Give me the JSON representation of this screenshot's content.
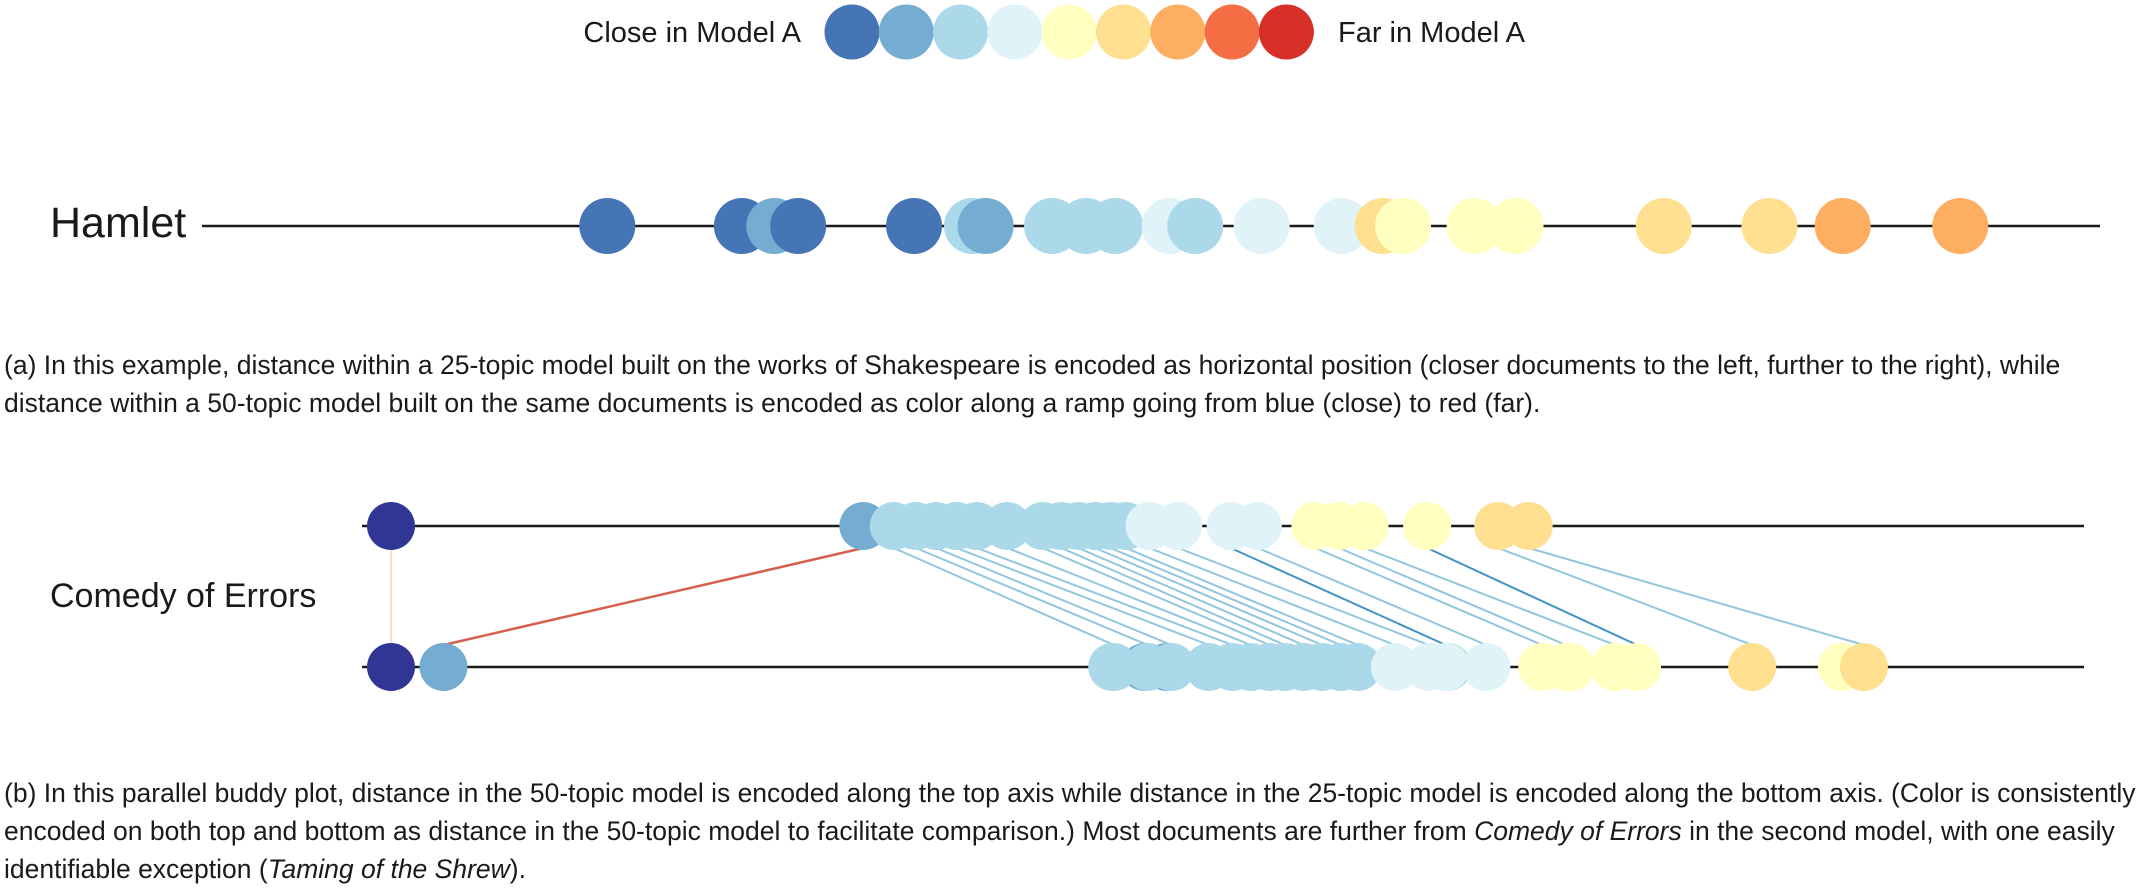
{
  "legend": {
    "left_label": "Close in Model A",
    "right_label": "Far in Model A",
    "swatches": [
      "#4575b4",
      "#74add1",
      "#abd9e9",
      "#e0f3f8",
      "#ffffbf",
      "#fee090",
      "#fdae61",
      "#f46d43",
      "#d73027"
    ]
  },
  "colors": {
    "line": "#1a1a1a",
    "dark_blue": "#313695",
    "connector_light": "#92c5de",
    "connector_dark": "#4393c3",
    "connector_red": "#d6604d",
    "connector_pink": "#fddbc7"
  },
  "panel_a": {
    "label": "Hamlet",
    "caption": "(a) In this example, distance within a 25-topic model built on the works of Shakespeare is encoded as horizontal position (closer documents to the left, further to the right), while distance within a 50-topic model built on the same documents is encoded as color along a ramp going from blue (close) to red (far).",
    "documents": [
      {
        "pos": 0.124,
        "c": 0
      },
      {
        "pos": 0.203,
        "c": 0
      },
      {
        "pos": 0.222,
        "c": 1
      },
      {
        "pos": 0.236,
        "c": 0
      },
      {
        "pos": 0.304,
        "c": 0
      },
      {
        "pos": 0.338,
        "c": 2
      },
      {
        "pos": 0.346,
        "c": 1
      },
      {
        "pos": 0.385,
        "c": 2
      },
      {
        "pos": 0.405,
        "c": 2
      },
      {
        "pos": 0.422,
        "c": 2
      },
      {
        "pos": 0.454,
        "c": 3
      },
      {
        "pos": 0.469,
        "c": 2
      },
      {
        "pos": 0.508,
        "c": 3
      },
      {
        "pos": 0.555,
        "c": 3
      },
      {
        "pos": 0.579,
        "c": 5
      },
      {
        "pos": 0.591,
        "c": 4
      },
      {
        "pos": 0.633,
        "c": 4
      },
      {
        "pos": 0.657,
        "c": 4
      },
      {
        "pos": 0.744,
        "c": 5
      },
      {
        "pos": 0.806,
        "c": 5
      },
      {
        "pos": 0.849,
        "c": 6
      },
      {
        "pos": 0.918,
        "c": 6
      }
    ]
  },
  "panel_b": {
    "label": "Comedy of Errors",
    "caption_parts": [
      "(b) In this parallel buddy plot, distance in the 50-topic model is encoded along the top axis while distance in the 25-topic model is encoded along the bottom axis. (Color is consistently encoded on both top and bottom as distance in the 50-topic model to facilitate comparison.) Most documents are further from ",
      "Comedy of Errors",
      " in the second model, with one easily identifiable exception (",
      "Taming of the Shrew",
      ")."
    ],
    "documents": [
      {
        "top": 0.0,
        "bottom": 0.0,
        "c": "dark",
        "link": "pink"
      },
      {
        "top": 0.279,
        "bottom": 0.031,
        "c": 1,
        "link": "red"
      },
      {
        "top": 0.297,
        "bottom": 0.427,
        "c": 2,
        "link": "light"
      },
      {
        "top": 0.31,
        "bottom": 0.447,
        "c": 2,
        "link": "light"
      },
      {
        "top": 0.322,
        "bottom": 0.461,
        "c": 2,
        "link": "light"
      },
      {
        "top": 0.334,
        "bottom": 0.483,
        "c": 2,
        "link": "light"
      },
      {
        "top": 0.346,
        "bottom": 0.497,
        "c": 2,
        "link": "light"
      },
      {
        "top": 0.364,
        "bottom": 0.508,
        "c": 2,
        "link": "light"
      },
      {
        "top": 0.385,
        "bottom": 0.519,
        "c": 2,
        "link": "light"
      },
      {
        "top": 0.396,
        "bottom": 0.528,
        "c": 2,
        "link": "light"
      },
      {
        "top": 0.406,
        "bottom": 0.539,
        "c": 2,
        "link": "light"
      },
      {
        "top": 0.416,
        "bottom": 0.55,
        "c": 2,
        "link": "light"
      },
      {
        "top": 0.425,
        "bottom": 0.561,
        "c": 2,
        "link": "light"
      },
      {
        "top": 0.434,
        "bottom": 0.571,
        "c": 2,
        "link": "light"
      },
      {
        "top": 0.448,
        "bottom": 0.593,
        "c": 3,
        "link": "light"
      },
      {
        "top": 0.465,
        "bottom": 0.613,
        "c": 3,
        "link": "light"
      },
      {
        "top": 0.496,
        "bottom": 0.623,
        "c": 3,
        "link": "dark"
      },
      {
        "top": 0.512,
        "bottom": 0.647,
        "c": 3,
        "link": "light"
      },
      {
        "top": 0.546,
        "bottom": 0.68,
        "c": 4,
        "link": "light"
      },
      {
        "top": 0.56,
        "bottom": 0.694,
        "c": 4,
        "link": "light"
      },
      {
        "top": 0.575,
        "bottom": 0.723,
        "c": 4,
        "link": "light"
      },
      {
        "top": 0.612,
        "bottom": 0.736,
        "c": 4,
        "link": "dark"
      },
      {
        "top": 0.654,
        "bottom": 0.804,
        "c": 5,
        "link": "light"
      },
      {
        "top": 0.672,
        "bottom": 0.87,
        "c": 5,
        "link": "light"
      }
    ],
    "bottom_extra": [
      {
        "pos": 0.426,
        "c": 2
      },
      {
        "pos": 0.445,
        "c": 1
      },
      {
        "pos": 0.458,
        "c": 1
      },
      {
        "pos": 0.624,
        "c": 2
      },
      {
        "pos": 0.857,
        "c": 4
      },
      {
        "pos": 0.697,
        "c": 4
      }
    ]
  }
}
